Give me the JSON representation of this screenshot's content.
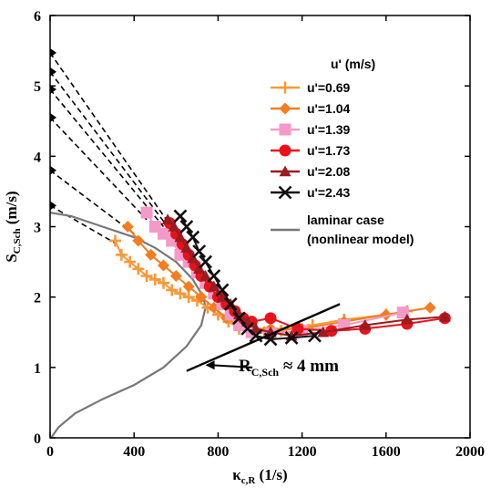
{
  "chart_data": {
    "type": "scatter",
    "xlim": [
      0,
      2000
    ],
    "ylim": [
      0,
      6
    ],
    "x_ticks": [
      0,
      400,
      800,
      1200,
      1600,
      2000
    ],
    "y_ticks": [
      0,
      1,
      2,
      3,
      4,
      5,
      6
    ],
    "xlabel": {
      "main": "κ",
      "sub": "c,R",
      "unit": " (1/s)"
    },
    "ylabel": {
      "main": "S",
      "sub": "C,Sch",
      "unit": " (m/s)"
    },
    "legend_title": "u' (m/s)",
    "legend_position": "top-right",
    "grid": false,
    "series": [
      {
        "name": "u'=0.69",
        "color": "#f59a3c",
        "marker": "plus",
        "points": [
          [
            310,
            2.8
          ],
          [
            340,
            2.6
          ],
          [
            380,
            2.5
          ],
          [
            420,
            2.4
          ],
          [
            460,
            2.3
          ],
          [
            500,
            2.25
          ],
          [
            540,
            2.2
          ],
          [
            580,
            2.1
          ],
          [
            620,
            2.05
          ],
          [
            660,
            2.0
          ],
          [
            700,
            1.95
          ],
          [
            750,
            1.85
          ],
          [
            800,
            1.75
          ],
          [
            850,
            1.65
          ],
          [
            900,
            1.55
          ],
          [
            960,
            1.5
          ],
          [
            1020,
            1.5
          ],
          [
            1100,
            1.52
          ],
          [
            1250,
            1.6
          ],
          [
            1400,
            1.68
          ],
          [
            1600,
            1.75
          ],
          [
            1700,
            1.8
          ]
        ]
      },
      {
        "name": "u'=1.04",
        "color": "#f47d20",
        "marker": "diamond",
        "points": [
          [
            370,
            3.0
          ],
          [
            420,
            2.8
          ],
          [
            480,
            2.6
          ],
          [
            540,
            2.45
          ],
          [
            600,
            2.3
          ],
          [
            660,
            2.15
          ],
          [
            720,
            2.0
          ],
          [
            780,
            1.85
          ],
          [
            840,
            1.7
          ],
          [
            900,
            1.6
          ],
          [
            960,
            1.55
          ],
          [
            1050,
            1.55
          ],
          [
            1200,
            1.55
          ],
          [
            1400,
            1.65
          ],
          [
            1600,
            1.75
          ],
          [
            1810,
            1.85
          ]
        ]
      },
      {
        "name": "u'=1.39",
        "color": "#f49ac8",
        "marker": "square",
        "points": [
          [
            460,
            3.2
          ],
          [
            500,
            3.0
          ],
          [
            540,
            2.9
          ],
          [
            580,
            2.8
          ],
          [
            620,
            2.6
          ],
          [
            660,
            2.5
          ],
          [
            700,
            2.35
          ],
          [
            740,
            2.2
          ],
          [
            780,
            2.05
          ],
          [
            820,
            1.9
          ],
          [
            860,
            1.75
          ],
          [
            900,
            1.6
          ],
          [
            960,
            1.5
          ],
          [
            1050,
            1.48
          ],
          [
            1200,
            1.52
          ],
          [
            1400,
            1.6
          ],
          [
            1680,
            1.78
          ]
        ]
      },
      {
        "name": "u'=1.73",
        "color": "#e8121c",
        "marker": "circle",
        "points": [
          [
            570,
            3.05
          ],
          [
            600,
            2.9
          ],
          [
            630,
            2.75
          ],
          [
            660,
            2.6
          ],
          [
            690,
            2.45
          ],
          [
            720,
            2.3
          ],
          [
            760,
            2.15
          ],
          [
            800,
            2.0
          ],
          [
            840,
            1.9
          ],
          [
            880,
            1.8
          ],
          [
            920,
            1.7
          ],
          [
            960,
            1.65
          ],
          [
            1050,
            1.7
          ],
          [
            1180,
            1.55
          ],
          [
            1340,
            1.52
          ],
          [
            1500,
            1.55
          ],
          [
            1700,
            1.62
          ],
          [
            1880,
            1.7
          ]
        ]
      },
      {
        "name": "u'=2.08",
        "color": "#9c1a20",
        "marker": "triangle",
        "points": [
          [
            560,
            3.1
          ],
          [
            590,
            3.0
          ],
          [
            620,
            2.85
          ],
          [
            650,
            2.7
          ],
          [
            680,
            2.55
          ],
          [
            710,
            2.4
          ],
          [
            740,
            2.3
          ],
          [
            780,
            2.15
          ],
          [
            820,
            2.0
          ],
          [
            860,
            1.9
          ],
          [
            900,
            1.75
          ],
          [
            940,
            1.65
          ],
          [
            980,
            1.55
          ],
          [
            1050,
            1.5
          ],
          [
            1150,
            1.45
          ],
          [
            1300,
            1.5
          ],
          [
            1500,
            1.6
          ],
          [
            1700,
            1.68
          ],
          [
            1880,
            1.72
          ]
        ]
      },
      {
        "name": "u'=2.43",
        "color": "#111111",
        "marker": "x",
        "points": [
          [
            620,
            3.15
          ],
          [
            650,
            3.0
          ],
          [
            680,
            2.85
          ],
          [
            710,
            2.65
          ],
          [
            740,
            2.5
          ],
          [
            780,
            2.3
          ],
          [
            820,
            2.1
          ],
          [
            860,
            1.9
          ],
          [
            900,
            1.7
          ],
          [
            940,
            1.55
          ],
          [
            980,
            1.45
          ],
          [
            1050,
            1.4
          ],
          [
            1150,
            1.42
          ],
          [
            1260,
            1.45
          ]
        ]
      }
    ],
    "laminar": {
      "name": "laminar case\n(nonlinear model)",
      "color": "#777777",
      "points": [
        [
          0,
          3.2
        ],
        [
          100,
          3.15
        ],
        [
          200,
          3.05
        ],
        [
          300,
          2.95
        ],
        [
          400,
          2.85
        ],
        [
          500,
          2.7
        ],
        [
          600,
          2.5
        ],
        [
          680,
          2.25
        ],
        [
          730,
          2.0
        ],
        [
          740,
          1.85
        ],
        [
          720,
          1.6
        ],
        [
          650,
          1.3
        ],
        [
          540,
          1.0
        ],
        [
          400,
          0.75
        ],
        [
          250,
          0.55
        ],
        [
          120,
          0.35
        ],
        [
          40,
          0.15
        ],
        [
          5,
          0.0
        ]
      ]
    },
    "extrapolations": [
      {
        "y0": 5.47,
        "x_end": 600,
        "y_end": 2.9
      },
      {
        "y0": 5.2,
        "x_end": 560,
        "y_end": 3.0
      },
      {
        "y0": 4.95,
        "x_end": 540,
        "y_end": 3.0
      },
      {
        "y0": 4.55,
        "x_end": 460,
        "y_end": 3.1
      },
      {
        "y0": 3.8,
        "x_end": 400,
        "y_end": 2.9
      },
      {
        "y0": 3.3,
        "x_end": 320,
        "y_end": 2.75
      }
    ],
    "tangent_line": [
      [
        650,
        0.95
      ],
      [
        1380,
        1.9
      ]
    ],
    "annotation": {
      "main": "R",
      "sub": "C,Sch",
      "rest": " ≈ 4 mm",
      "arrow_tail": [
        790,
        1.0
      ],
      "arrow_head": [
        740,
        1.02
      ]
    }
  }
}
